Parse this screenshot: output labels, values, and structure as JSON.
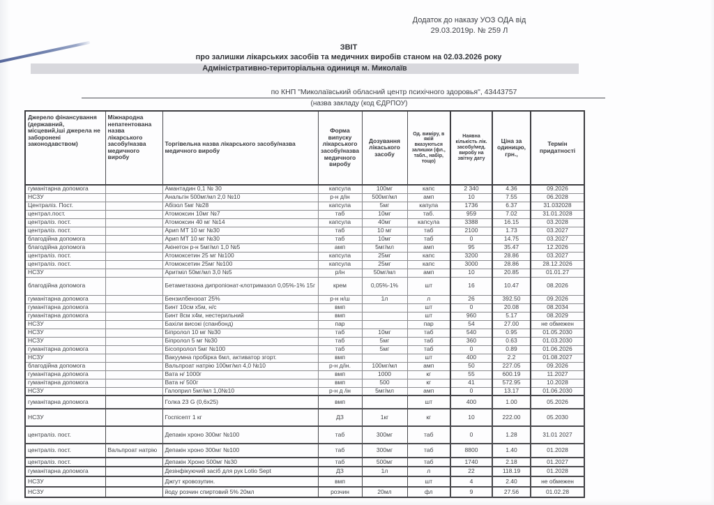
{
  "page": {
    "appendix_line1": "Додаток до наказу УОЗ ОДА від",
    "appendix_line2": "29.03.2019р. № 259 Л",
    "title": "ЗВІТ",
    "subtitle": "про  залишки лікарських засобів та медичних виробів станом на 02.03.2026 року",
    "admin_unit": "Адміністративно-територіальна одиниця  м.  Миколаїв",
    "facility_line": "по КНП \"Миколаївський обласний центр психічного здоровья\",  43443757",
    "facility_caption": "(назва закладу (код ЄДРПОУ)"
  },
  "colors": {
    "highlight_band": "#d8d8dd",
    "pen_mark": "#54659a",
    "text": "#3f4145"
  },
  "table": {
    "headers": [
      "Джерело фінансування (державний, місцевий,іші джерела не заборонені законодавством)",
      "Міжнародна непатентована назва лікарського засобу/назва медичного виробу",
      "Торгівельна назва лікарського засобу/назва медичного виробу",
      "Форма випуску лікарського засобу/назва медичного виробу",
      "Дозування лікаського засобу",
      "Од. виміру, в якій вказуються залишки (фл., табл., набір, тощо)",
      "Наявна кількість лік. засобу/мед. виробу на звітну дату",
      "Ціна за одиницю, грн.,",
      "Термін придатності"
    ],
    "rows": [
      [
        "гуманітарна допомога",
        "",
        "Амантадин 0,1 № 30",
        "капсула",
        "100мг",
        "капс",
        "2 340",
        "4.36",
        "09.2026"
      ],
      [
        "НСЗУ",
        "",
        "Анальгін 500мг/мл 2,0 №10",
        "р-н д/ін",
        "500мг/мл",
        "амп",
        "10",
        "7.55",
        "06.2028"
      ],
      [
        "Централіз. Пост.",
        "",
        "Абізол 5мг №28",
        "капсула",
        "5мг",
        "капула",
        "1736",
        "6.37",
        "31.032028"
      ],
      [
        "централ.пост.",
        "",
        "Атомоксин 10мг №7",
        "таб",
        "10мг",
        "таб.",
        "959",
        "7.02",
        "31.01.2028"
      ],
      [
        "централіз. пост.",
        "",
        "Атомоксин 40 мг №14",
        "капсула",
        "40мг",
        "капсула",
        "3388",
        "16.15",
        "03.2028"
      ],
      [
        "централіз. пост.",
        "",
        "Арип МТ 10 мг №30",
        "таб",
        "10 мг",
        "таб",
        "2100",
        "1.73",
        "03.2027"
      ],
      [
        "благодійна допомога",
        "",
        "Арип МТ 10 мг №30",
        "таб",
        "10мг",
        "таб",
        "0",
        "14.75",
        "03.2027"
      ],
      [
        "благодійна допомога",
        "",
        "Акінетон р-н 5мг/мл 1,0 №5",
        "амп",
        "5мг/мл",
        "амп",
        "95",
        "35.47",
        "12.2026"
      ],
      [
        "централіз. пост.",
        "",
        "Атомоксетин 25 мг №100",
        "капсула",
        "25мг",
        "капс",
        "3200",
        "28.86",
        "03.2027"
      ],
      [
        "централіз. пост.",
        "",
        "Атомоксетин 25мг №100",
        "капсула",
        "25мг",
        "капс",
        "3000",
        "28.86",
        "28.12.2026"
      ],
      [
        "НСЗУ",
        "",
        "Аритміл 50мг/мл 3,0 №5",
        "р/ін",
        "50мг/мл",
        "амп",
        "10",
        "20.85",
        "01.01.27"
      ],
      [
        "благодійна допомога",
        "",
        "Бетаметазона  дипропіонат-клотримазол 0,05%-1% 15г",
        "крем",
        "0,05%-1%",
        "шт",
        "16",
        "10.47",
        "08.2026"
      ],
      [
        "гуманітарна допомога",
        "",
        "Бензилбензоат 25%",
        "р-н н/ш",
        "1л",
        "л",
        "26",
        "392.50",
        "09.2026"
      ],
      [
        "гуманітарна допомога",
        "",
        "Бинт 10см х5м, н/с",
        "вмп",
        "",
        "шт",
        "0",
        "20.08",
        "08.2034"
      ],
      [
        "гуманітарна допомога",
        "",
        "Бинт 8см х4м, нестерильний",
        "вмп",
        "",
        "шт",
        "960",
        "5.17",
        "08.2029"
      ],
      [
        "НСЗУ",
        "",
        "Бахіли високі (спанбонд)",
        "пар",
        "",
        "пар",
        "54",
        "27.00",
        "не обмежен"
      ],
      [
        "НСЗУ",
        "",
        "Біпролол 10 мг №30",
        "таб",
        "10мг",
        "таб",
        "540",
        "0.95",
        "01.05.2030"
      ],
      [
        "НСЗУ",
        "",
        "Біпролол 5 мг №30",
        "таб",
        "5мг",
        "таб",
        "360",
        "0.63",
        "01.03.2030"
      ],
      [
        "гуманітарна допомога",
        "",
        "Бісопролол 5мг №100",
        "таб",
        "5мг",
        "таб",
        "0",
        "0.89",
        "01.06.2026"
      ],
      [
        "НСЗУ",
        "",
        "Вакуумна пробірка 6мл, активатор згорт.",
        "вмп",
        "",
        "шт",
        "400",
        "2.2",
        "01.08.2027"
      ],
      [
        "благодійна допомога",
        "",
        "Вальпроат натрію 100мг/мл 4,0 №10",
        "р-н д/ін.",
        "100мг/мл",
        "амп",
        "50",
        "227.05",
        "09.2026"
      ],
      [
        "гуманітарна допомога",
        "",
        "Вата н/ 1000г",
        "вмп",
        "1000",
        "кг",
        "55",
        "600.19",
        "11.2027"
      ],
      [
        "гуманітарна допомога",
        "",
        "Вата н/ 500г",
        "вмп",
        "500",
        "кг",
        "41",
        "572.95",
        "10.2028"
      ],
      [
        "НСЗУ",
        "",
        "Галоприл 5мг/мл 1,0№10",
        "р-н д /ін",
        "5мг/мл",
        "амп",
        "0",
        "13.17",
        "01.06.2030"
      ],
      [
        "гуманітарна допомога",
        "",
        "Голка  23 G (0,6х25)",
        "вмп",
        "",
        "шт",
        "400",
        "1.00",
        "05.2026"
      ],
      [
        "НСЗУ",
        "",
        "Госпісепт 1 кг",
        "ДЗ",
        "1кг",
        "кг",
        "10",
        "222.00",
        "05.2030"
      ],
      [
        "централіз. пост.",
        "",
        "Депакін хроно 300мг №100",
        "таб",
        "300мг",
        "таб",
        "0",
        "1.28",
        "31.01 2027"
      ],
      [
        "централіз. пост.",
        "Вальпроат натрію",
        "Депакін хроно 300мг №100",
        "таб",
        "300мг",
        "таб",
        "8800",
        "1.40",
        "01.2028"
      ],
      [
        "централіз. пост.",
        "",
        "Депакін Хроно 500мг №30",
        "таб",
        "500мг",
        "таб",
        "1740",
        "2.18",
        "01.2027"
      ],
      [
        "гуманітарна допомога",
        "",
        "Дезінфікуючий засіб для рук Lotio Sept",
        "ДЗ",
        "1л",
        "л",
        "22",
        "118.19",
        "01.2028"
      ],
      [
        "НСЗУ",
        "",
        "Джгут кровозупин.",
        "вмп",
        "",
        "шт",
        "4",
        "2.40",
        "не обмежен"
      ],
      [
        "НСЗУ",
        "",
        "йоду розчин спиртовий 5% 20мл",
        "розчин",
        "20мл",
        "фл",
        "9",
        "27.56",
        "01.02.28"
      ]
    ]
  }
}
